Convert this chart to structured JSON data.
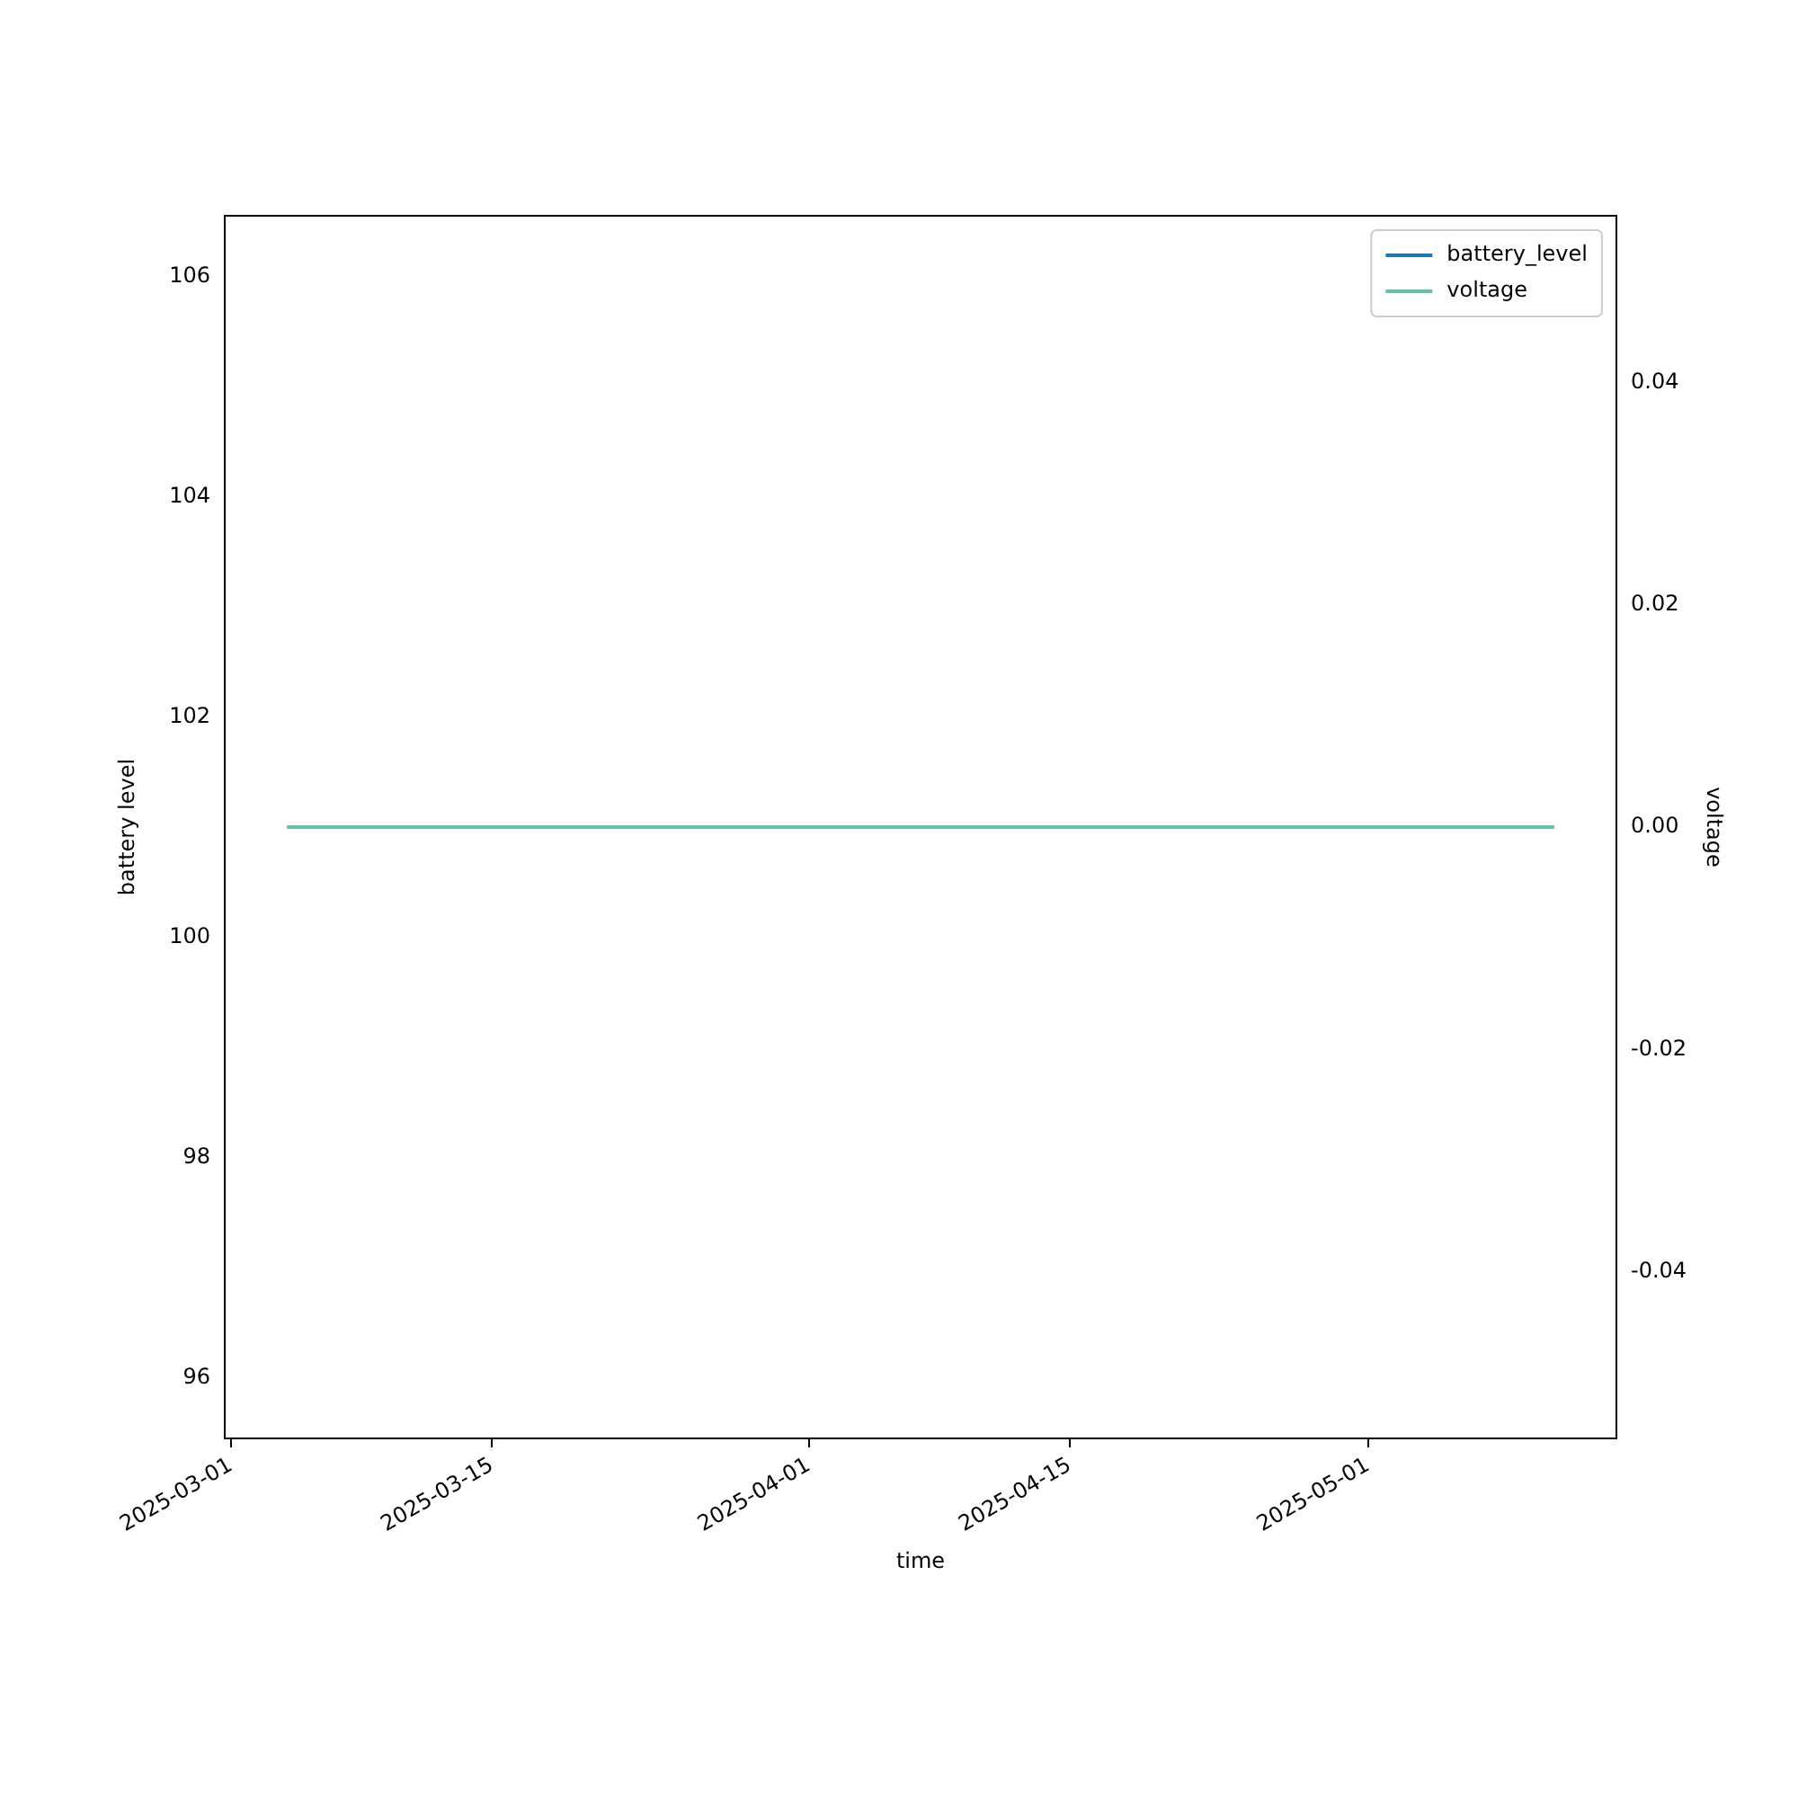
{
  "chart_data": {
    "type": "line",
    "xlabel": "time",
    "ylabel": "battery level",
    "y2label": "voltage",
    "x": [
      "2025-03-04",
      "2025-05-11"
    ],
    "series": [
      {
        "name": "battery_level",
        "color": "#1f77b4",
        "values": [
          null,
          null
        ]
      },
      {
        "name": "voltage",
        "color": "#66c2a5",
        "values": [
          0,
          0
        ],
        "axis": "y2"
      }
    ],
    "xlim": [
      "2025-02-28T16:00",
      "2025-05-14T08:00"
    ],
    "xticks": [
      "2025-03-01",
      "2025-03-15",
      "2025-04-01",
      "2025-04-15",
      "2025-05-01"
    ],
    "ylim": [
      95.45,
      106.55
    ],
    "yticks": [
      96,
      98,
      100,
      102,
      104,
      106
    ],
    "y2lim": [
      -0.055,
      0.055
    ],
    "y2ticks": [
      -0.04,
      -0.02,
      {
        "value": 0,
        "label": "0.00"
      },
      0.02,
      0.04
    ],
    "grid": false,
    "legend": "top right",
    "marker": "none",
    "line_style": "solid"
  }
}
